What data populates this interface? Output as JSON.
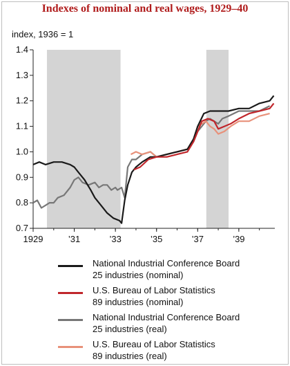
{
  "chart_data": {
    "type": "line",
    "title": "Indexes of nominal and real wages, 1929–40",
    "unit_label": "index, 1936 = 1",
    "xlabel": "",
    "ylabel": "",
    "xlim": [
      1929.0,
      1940.75
    ],
    "ylim": [
      0.7,
      1.4
    ],
    "yticks": [
      "0.7",
      "0.8",
      "0.9",
      "1.0",
      "1.1",
      "1.2",
      "1.3",
      "1.4"
    ],
    "xticks": [
      {
        "value": 1929,
        "label": "1929"
      },
      {
        "value": 1931,
        "label": "’31"
      },
      {
        "value": 1933,
        "label": "’33"
      },
      {
        "value": 1935,
        "label": "’35"
      },
      {
        "value": 1937,
        "label": "’37"
      },
      {
        "value": 1939,
        "label": "’39"
      }
    ],
    "shaded_periods": [
      [
        1929.67,
        1933.25
      ],
      [
        1937.42,
        1938.5
      ]
    ],
    "grid": false,
    "legend_position": "bottom",
    "series": [
      {
        "name": "National Industrial Conference Board 25 industries (real)",
        "color": "#777777",
        "x": [
          1929.0,
          1929.2,
          1929.4,
          1929.6,
          1929.8,
          1930.0,
          1930.2,
          1930.5,
          1930.8,
          1931.0,
          1931.2,
          1931.4,
          1931.7,
          1932.0,
          1932.2,
          1932.4,
          1932.6,
          1932.8,
          1933.0,
          1933.1,
          1933.3,
          1933.45,
          1933.6,
          1933.8,
          1934.0,
          1934.3,
          1934.7,
          1935.0,
          1935.5,
          1936.0,
          1936.5,
          1936.8,
          1937.0,
          1937.2,
          1937.4,
          1937.6,
          1937.8,
          1938.0,
          1938.2,
          1938.5,
          1939.0,
          1939.5,
          1940.0,
          1940.5
        ],
        "y": [
          0.8,
          0.81,
          0.78,
          0.79,
          0.8,
          0.8,
          0.82,
          0.83,
          0.86,
          0.89,
          0.9,
          0.88,
          0.87,
          0.88,
          0.86,
          0.87,
          0.87,
          0.85,
          0.86,
          0.85,
          0.86,
          0.82,
          0.94,
          0.97,
          0.97,
          0.99,
          1.0,
          0.98,
          0.99,
          1.0,
          1.01,
          1.04,
          1.08,
          1.1,
          1.12,
          1.13,
          1.12,
          1.11,
          1.13,
          1.14,
          1.16,
          1.16,
          1.16,
          1.18
        ]
      },
      {
        "name": "U.S. Bureau of Labor Statistics 89 industries (real)",
        "color": "#e8917a",
        "x": [
          1933.75,
          1934.0,
          1934.3,
          1934.7,
          1935.0,
          1935.5,
          1936.0,
          1936.5,
          1936.8,
          1937.0,
          1937.2,
          1937.4,
          1937.6,
          1937.8,
          1938.0,
          1938.3,
          1938.6,
          1939.0,
          1939.5,
          1940.0,
          1940.5
        ],
        "y": [
          0.99,
          1.0,
          0.99,
          1.0,
          0.98,
          0.99,
          1.0,
          1.01,
          1.05,
          1.1,
          1.11,
          1.12,
          1.1,
          1.09,
          1.07,
          1.08,
          1.1,
          1.12,
          1.12,
          1.14,
          1.15
        ]
      },
      {
        "name": "National Industrial Conference Board 25 industries (nominal)",
        "color": "#1a1a1a",
        "x": [
          1929.0,
          1929.3,
          1929.6,
          1930.0,
          1930.4,
          1930.8,
          1931.0,
          1931.2,
          1931.5,
          1931.8,
          1932.0,
          1932.3,
          1932.6,
          1932.9,
          1933.2,
          1933.3,
          1933.45,
          1933.6,
          1933.8,
          1934.0,
          1934.3,
          1934.7,
          1935.0,
          1935.5,
          1936.0,
          1936.5,
          1936.8,
          1937.0,
          1937.3,
          1937.6,
          1938.0,
          1938.5,
          1939.0,
          1939.5,
          1940.0,
          1940.5,
          1940.7
        ],
        "y": [
          0.95,
          0.96,
          0.95,
          0.96,
          0.96,
          0.95,
          0.94,
          0.92,
          0.89,
          0.85,
          0.82,
          0.79,
          0.76,
          0.74,
          0.73,
          0.72,
          0.81,
          0.87,
          0.92,
          0.94,
          0.96,
          0.98,
          0.98,
          0.99,
          1.0,
          1.01,
          1.05,
          1.1,
          1.15,
          1.16,
          1.16,
          1.16,
          1.17,
          1.17,
          1.19,
          1.2,
          1.22
        ]
      },
      {
        "name": "U.S. Bureau of Labor Statistics 89 industries (nominal)",
        "color": "#c0262b",
        "x": [
          1933.9,
          1934.2,
          1934.6,
          1935.0,
          1935.5,
          1936.0,
          1936.5,
          1936.8,
          1937.0,
          1937.2,
          1937.5,
          1937.8,
          1938.0,
          1938.3,
          1938.6,
          1939.0,
          1939.5,
          1940.0,
          1940.5,
          1940.7
        ],
        "y": [
          0.93,
          0.94,
          0.97,
          0.98,
          0.98,
          0.99,
          1.0,
          1.04,
          1.08,
          1.12,
          1.13,
          1.12,
          1.09,
          1.1,
          1.11,
          1.13,
          1.15,
          1.16,
          1.17,
          1.19
        ]
      }
    ],
    "legend": [
      {
        "line1": "National Industrial Conference Board",
        "line2": "25 industries (nominal)",
        "color": "#1a1a1a"
      },
      {
        "line1": "U.S. Bureau of Labor Statistics",
        "line2": "89 industries (nominal)",
        "color": "#c0262b"
      },
      {
        "line1": "National Industrial Conference Board",
        "line2": "25 industries (real)",
        "color": "#777777"
      },
      {
        "line1": "U.S. Bureau of Labor Statistics",
        "line2": "89 industries (real)",
        "color": "#e8917a"
      }
    ]
  }
}
